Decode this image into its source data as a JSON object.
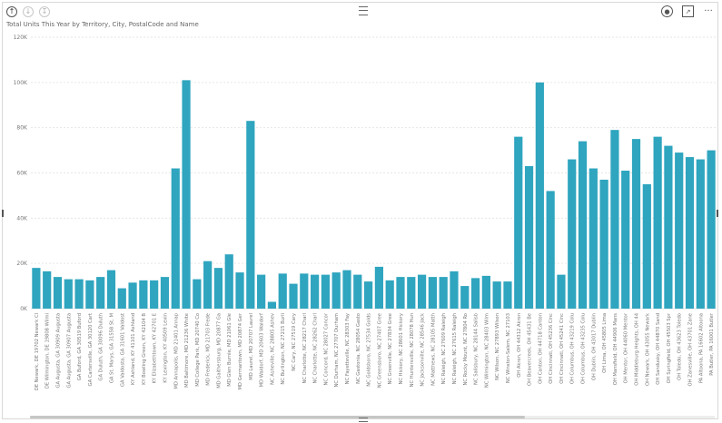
{
  "header": {
    "drill_up_icon": "drill-up-icon",
    "drill_down_icon": "drill-down-icon",
    "expand_icon": "expand-down-icon",
    "focus_icon": "focus-mode-icon",
    "more_label": "···"
  },
  "colors": {
    "bar": "#2fa5bf",
    "grid": "#e6e6e6",
    "axis_text": "#777777"
  },
  "chart_data": {
    "type": "bar",
    "title": "Total Units This Year by Territory, City, PostalCode and Name",
    "xlabel": "",
    "ylabel": "",
    "ylim": [
      0,
      120000
    ],
    "y_ticks": [
      "0K",
      "20K",
      "40K",
      "60K",
      "80K",
      "100K",
      "120K"
    ],
    "y_tick_values": [
      0,
      20000,
      40000,
      60000,
      80000,
      100000,
      120000
    ],
    "grid": true,
    "categories": [
      "DE Newark, DE 19702 Newark Cl",
      "DE Wilmington, DE 19808 Wilmi",
      "GA Augusta, GA 30909 Augusta",
      "GA Augusta, GA 30907 Augusta",
      "GA Buford, GA 30519 Buford",
      "GA Cartersville, GA 30120 Cart",
      "GA Duluth, GA 30096 Duluth",
      "GA St. Marys, GA 31558 St. M",
      "GA Valdosta, GA 31601 Valdost",
      "KY Ashland, KY 41101 Ashland",
      "KY Bowling Green, KY 42104 B",
      "KY Elizabethtown, KY 42701 E",
      "KY Lexington, KY 40509 Lexin",
      "MD Annapolis, MD 21401 Annap",
      "MD Baltimore, MD 21236 White",
      "MD College Park, MD 20740 Co",
      "MD Frederick, MD 21703 Frede",
      "MD Gaithersburg, MD 20877 Ga",
      "MD Glen Burnie, MD 21061 Gle",
      "MD Germantown, MD 20874 Ger",
      "MD Laurel, MD 20707 Laurel",
      "MD Waldorf, MD 20603 Waldorf",
      "NC Asheville, NC 28805 Ashev",
      "NC Burlington, NC 27215 Burli",
      "NC Cary, NC 27519 Cary",
      "NC Charlotte, NC 28217 Charl",
      "NC Charlotte, NC 28262 Charl",
      "NC Concord, NC 28027 Concor",
      "NC Durham, NC 27707 Durham",
      "NC Fayetteville, NC 28303 Fay",
      "NC Gastonia, NC 28054 Gasto",
      "NC Goldsboro, NC 27534 Golds",
      "NC Greensboro, NC 27407 Gree",
      "NC Greenville, NC 27834 Gree",
      "NC Hickory, NC 28601 Hickory",
      "NC Huntersville, NC 28078 Hun",
      "NC Jacksonville, NC 28546 Jack",
      "NC Matthews, NC 28105 Matth",
      "NC Raleigh, NC 27609 Raleigh",
      "NC Raleigh, NC 27615 Raleigh",
      "NC Rocky Mount, NC 27804 Ro",
      "NC Salisbury, NC 28144 Salisb",
      "NC Wilmington, NC 28403 Wilm",
      "NC Wilson, NC 27893 Wilson",
      "NC Winston-Salem, NC 27103",
      "OH Akron, OH 44312 Akron",
      "OH Beavercreek, OH 45431 Be",
      "OH Canton, OH 44718 Canton",
      "OH Cincinnati, OH 45236 Cinc",
      "OH Cincinnati, OH 45241 Cinc",
      "OH Columbus, OH 43219 Colu",
      "OH Columbus, OH 43235 Colu",
      "OH Dublin, OH 43017 Dublin",
      "OH Lima, OH 45805 Lima",
      "OH Mansfield, OH 44906 Mans",
      "OH Mentor, OH 44060 Mentor",
      "OH Middleburg Heights, OH 44",
      "OH Newark, OH 43055 Newark",
      "OH Sandusky, OH 44870 Sand",
      "OH Springfield, OH 45503 Spr",
      "OH Toledo, OH 43623 Toledo",
      "OH Zanesville, OH 43701 Zane",
      "PA Altoona, PA 16602 Altoona",
      "PA Butler, PA 16001 Butler"
    ],
    "values": [
      18000,
      16500,
      14000,
      13000,
      13000,
      12500,
      14000,
      17000,
      9000,
      11500,
      12500,
      12500,
      14000,
      62000,
      101000,
      13000,
      21000,
      18000,
      24000,
      16000,
      83000,
      15000,
      3000,
      15500,
      11000,
      15500,
      15000,
      15000,
      16000,
      17000,
      15000,
      12000,
      18500,
      12500,
      14000,
      14000,
      15000,
      14000,
      14000,
      16500,
      10000,
      13500,
      14500,
      12000,
      12000,
      76000,
      63000,
      100000,
      52000,
      15000,
      66000,
      74000,
      62000,
      57000,
      79000,
      61000,
      75000,
      55000,
      76000,
      72000,
      69000,
      67000,
      66000,
      70000
    ]
  }
}
